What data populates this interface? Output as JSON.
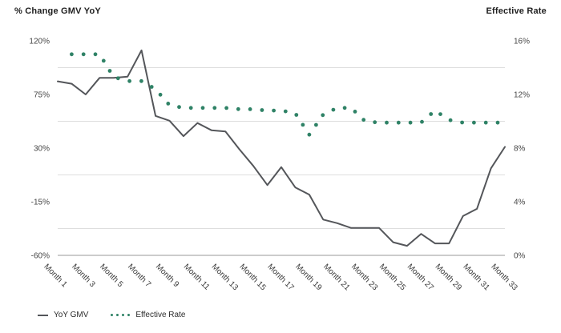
{
  "header": {
    "left_title": "% Change GMV YoY",
    "right_title": "Effective Rate"
  },
  "legend": {
    "items": [
      {
        "label": "YoY GMV",
        "swatch": "solid-line",
        "color": "#54565a"
      },
      {
        "label": "Effective Rate",
        "swatch": "dotted-line",
        "color": "#2f8266"
      }
    ]
  },
  "chart_data": {
    "type": "line",
    "title": "",
    "categories": [
      "Month 1",
      "Month 2",
      "Month 3",
      "Month 4",
      "Month 5",
      "Month 6",
      "Month 7",
      "Month 8",
      "Month 9",
      "Month 10",
      "Month 11",
      "Month 12",
      "Month 13",
      "Month 14",
      "Month 15",
      "Month 16",
      "Month 17",
      "Month 18",
      "Month 19",
      "Month 20",
      "Month 21",
      "Month 22",
      "Month 23",
      "Month 24",
      "Month 25",
      "Month 26",
      "Month 27",
      "Month 28",
      "Month 29",
      "Month 30",
      "Month 31",
      "Month 32",
      "Month 33"
    ],
    "x_tick_labels_shown": [
      "Month 1",
      "Month 3",
      "Month 5",
      "Month 7",
      "Month 9",
      "Month 11",
      "Month 13",
      "Month 15",
      "Month 17",
      "Month 19",
      "Month 21",
      "Month 23",
      "Month 25",
      "Month 27",
      "Month 29",
      "Month 31",
      "Month 33"
    ],
    "left_axis": {
      "title": "% Change GMV YoY",
      "tick_labels": [
        "120%",
        "75%",
        "30%",
        "-15%",
        "-60%"
      ],
      "tick_values": [
        120,
        75,
        30,
        -15,
        -60
      ],
      "min": -60,
      "max": 120
    },
    "right_axis": {
      "title": "Effective Rate",
      "tick_labels": [
        "16%",
        "12%",
        "8%",
        "4%",
        "0%"
      ],
      "tick_values": [
        16,
        12,
        8,
        4,
        0
      ],
      "min": 0,
      "max": 16
    },
    "grid": "horizontal-between-ticks",
    "legend_position": "bottom-left",
    "series": [
      {
        "name": "YoY GMV",
        "axis": "left",
        "line_style": "solid",
        "color": "#54565a",
        "values": [
          86,
          84,
          75,
          89,
          89,
          90,
          112,
          57,
          53,
          40,
          51,
          45,
          44,
          29,
          15,
          -1,
          14,
          -3,
          -9,
          -30,
          -33,
          -37,
          -37,
          -37,
          -49,
          -52,
          -42,
          -50,
          -50,
          -27,
          -21,
          13,
          31
        ]
      },
      {
        "name": "Effective Rate",
        "axis": "right",
        "line_style": "dotted",
        "color": "#2f8266",
        "values": [
          null,
          15,
          15,
          15,
          13.3,
          13,
          13,
          12.4,
          11.2,
          11,
          11,
          11,
          11,
          10.9,
          10.9,
          10.8,
          10.8,
          10.6,
          9,
          10.5,
          11,
          11,
          10,
          9.9,
          9.9,
          9.9,
          9.9,
          10.8,
          10.1,
          9.9,
          9.9,
          9.9,
          9.9
        ]
      }
    ],
    "colors": {
      "gridline": "#dedede",
      "axis_line": "#9a9a9a",
      "tick_label": "#454545",
      "x_label": "#3a3a3a"
    }
  }
}
